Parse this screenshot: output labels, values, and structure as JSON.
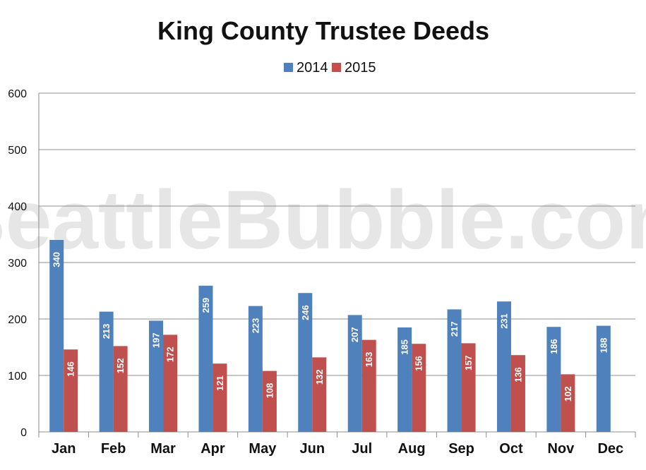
{
  "watermark": "SeattleBubble.com",
  "chart_data": {
    "type": "bar",
    "title": "King County Trustee Deeds",
    "xlabel": "",
    "ylabel": "",
    "ylim": [
      0,
      600
    ],
    "yticks": [
      0,
      100,
      200,
      300,
      400,
      500,
      600
    ],
    "grid": true,
    "legend_position": "top",
    "categories": [
      "Jan",
      "Feb",
      "Mar",
      "Apr",
      "May",
      "Jun",
      "Jul",
      "Aug",
      "Sep",
      "Oct",
      "Nov",
      "Dec"
    ],
    "series": [
      {
        "name": "2014",
        "color": "#4f81bd",
        "values": [
          340,
          213,
          197,
          259,
          223,
          246,
          207,
          185,
          217,
          231,
          186,
          188
        ],
        "labels": [
          "340",
          "213",
          "197",
          "259",
          "223",
          "246",
          "207",
          "185",
          "217",
          "231",
          "186",
          "188"
        ]
      },
      {
        "name": "2015",
        "color": "#c0504d",
        "values": [
          146,
          152,
          172,
          121,
          108,
          132,
          163,
          156,
          157,
          136,
          102,
          null
        ],
        "labels": [
          "146",
          "152",
          "172",
          "121",
          "108",
          "132",
          "163",
          "156",
          "157",
          "136",
          "102",
          ""
        ]
      }
    ]
  }
}
